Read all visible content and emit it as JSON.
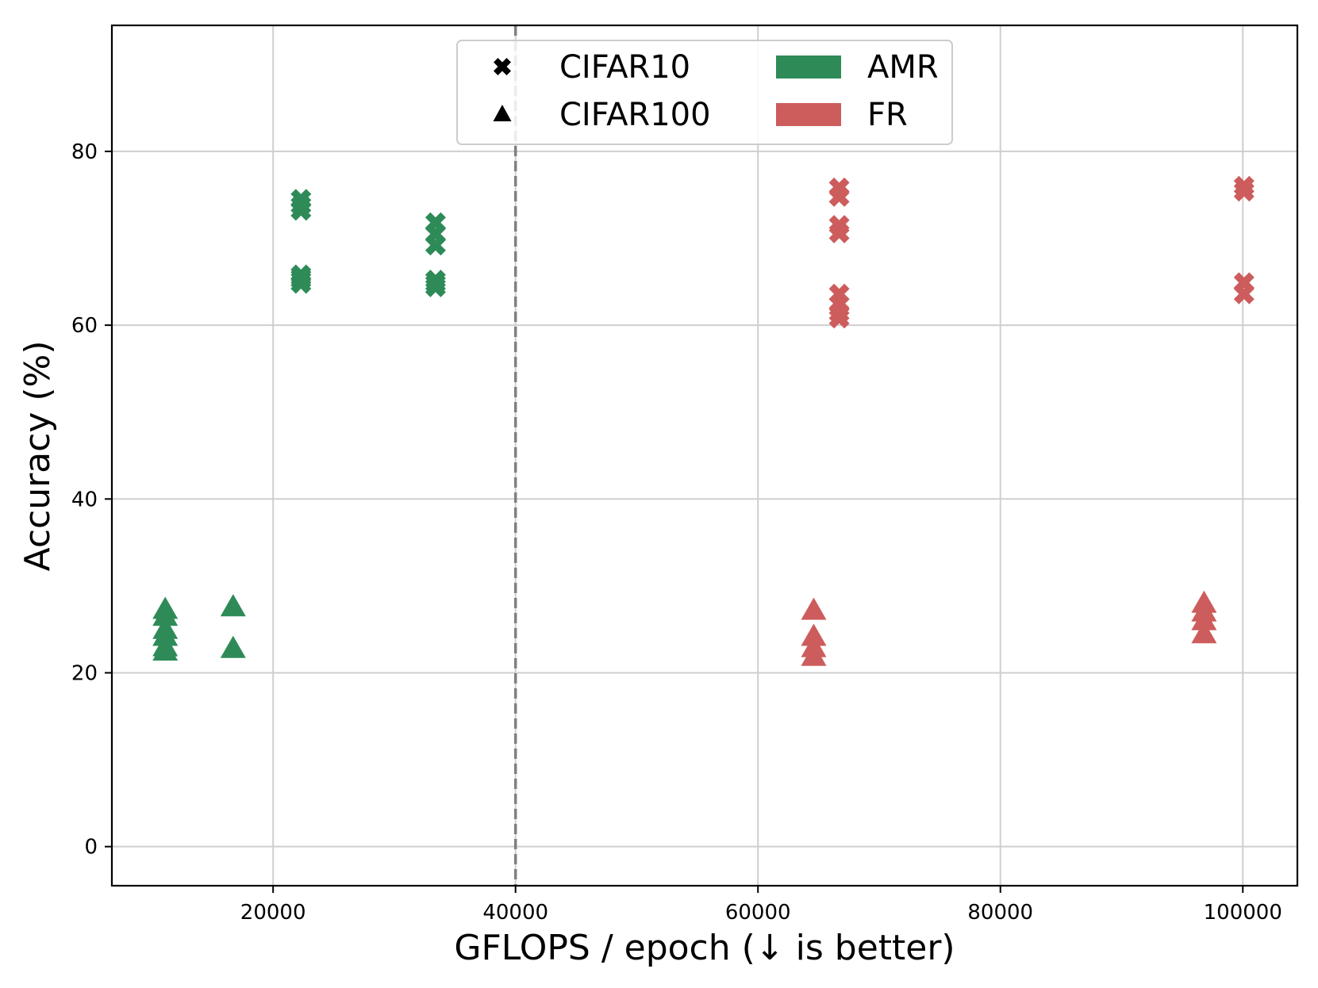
{
  "chart_data": {
    "type": "scatter",
    "xlabel": "GFLOPS / epoch (↓ is better)",
    "ylabel": "Accuracy (%)",
    "xlim": [
      6700,
      104500
    ],
    "ylim": [
      -4.5,
      94.5
    ],
    "xticks": [
      20000,
      40000,
      60000,
      80000,
      100000
    ],
    "yticks": [
      0,
      20,
      40,
      60,
      80
    ],
    "xtick_labels": [
      "20000",
      "40000",
      "60000",
      "80000",
      "100000"
    ],
    "ytick_labels": [
      "0",
      "20",
      "40",
      "60",
      "80"
    ],
    "grid": true,
    "vline": {
      "x": 40000,
      "style": "dashed",
      "color": "#808080"
    },
    "colors": {
      "AMR": "#2e8b57",
      "FR": "#cd5c5c"
    },
    "legend": {
      "placement": "top-center",
      "markers": [
        {
          "label": "CIFAR10",
          "marker": "x-filled"
        },
        {
          "label": "CIFAR100",
          "marker": "triangle"
        }
      ],
      "methods": [
        {
          "label": "AMR",
          "color": "#2e8b57"
        },
        {
          "label": "FR",
          "color": "#cd5c5c"
        }
      ]
    },
    "series": [
      {
        "name": "AMR CIFAR10",
        "method": "AMR",
        "dataset": "CIFAR10",
        "marker": "x-filled",
        "x": [
          22300,
          22300,
          22300,
          22300,
          22300,
          22300,
          22300,
          33400,
          33400,
          33400,
          33400,
          33400,
          33400
        ],
        "y": [
          74.5,
          73.8,
          73.2,
          65.8,
          65.2,
          64.8,
          65.5,
          71.8,
          70.5,
          69.2,
          65.2,
          64.4,
          64.8
        ]
      },
      {
        "name": "AMR CIFAR100",
        "method": "AMR",
        "dataset": "CIFAR100",
        "marker": "triangle",
        "x": [
          11100,
          11100,
          11100,
          11100,
          11100,
          11100,
          16700,
          16700
        ],
        "y": [
          27.3,
          26.5,
          25.0,
          24.2,
          23.0,
          22.5,
          27.6,
          22.8
        ]
      },
      {
        "name": "FR CIFAR10",
        "method": "FR",
        "dataset": "CIFAR10",
        "marker": "x-filled",
        "x": [
          66700,
          66700,
          66700,
          66700,
          66700,
          66700,
          66700,
          66700,
          100100,
          100100,
          100100,
          100100
        ],
        "y": [
          75.8,
          74.8,
          71.5,
          70.6,
          63.6,
          62.4,
          61.4,
          60.8,
          76.0,
          75.4,
          64.9,
          63.6
        ]
      },
      {
        "name": "FR CIFAR100",
        "method": "FR",
        "dataset": "CIFAR100",
        "marker": "triangle",
        "x": [
          64600,
          64600,
          64600,
          64600,
          96800,
          96800,
          96800,
          96800
        ],
        "y": [
          27.2,
          24.2,
          22.9,
          21.9,
          28.0,
          27.0,
          26.0,
          24.5
        ]
      }
    ]
  }
}
